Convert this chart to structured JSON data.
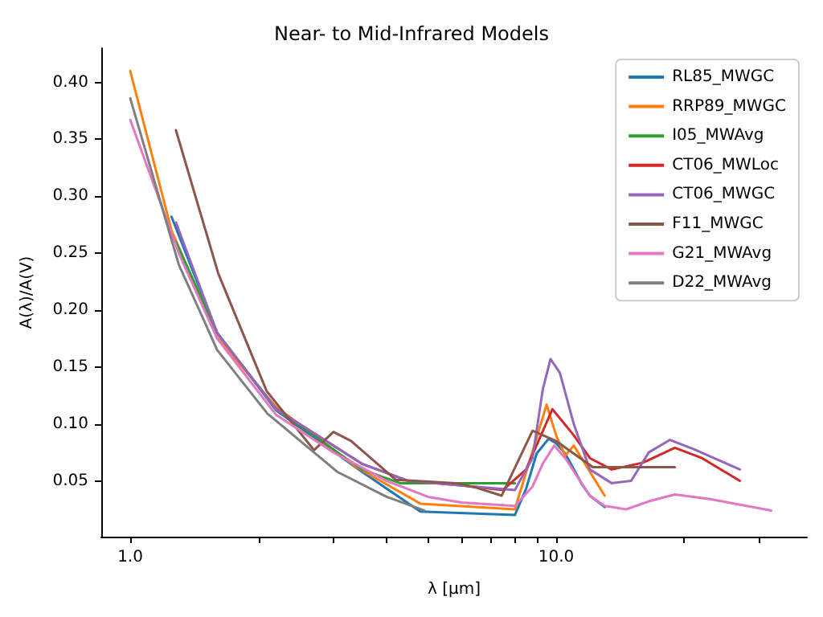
{
  "chart_data": {
    "type": "line",
    "title": "Near- to Mid-Infrared Models",
    "xlabel": "λ [μm]",
    "ylabel": "A(λ)/A(V)",
    "log": "x",
    "grid": false,
    "legend": "top right",
    "marker": "none",
    "line_style": "solid",
    "xlim": [
      0.855,
      38.8
    ],
    "ylim": [
      0.001,
      0.43
    ],
    "xticks": [
      {
        "value": 1,
        "label": "1.0"
      },
      {
        "value": 2,
        "label": null
      },
      {
        "value": 3,
        "label": null
      },
      {
        "value": 4,
        "label": null
      },
      {
        "value": 5,
        "label": null
      },
      {
        "value": 6,
        "label": null
      },
      {
        "value": 7,
        "label": null
      },
      {
        "value": 8,
        "label": null
      },
      {
        "value": 9,
        "label": null
      },
      {
        "value": 10,
        "label": "10.0"
      },
      {
        "value": 20,
        "label": null
      },
      {
        "value": 30,
        "label": null
      }
    ],
    "yticks": [
      {
        "value": 0.05,
        "label": "0.05"
      },
      {
        "value": 0.1,
        "label": "0.10"
      },
      {
        "value": 0.15,
        "label": "0.15"
      },
      {
        "value": 0.2,
        "label": "0.20"
      },
      {
        "value": 0.25,
        "label": "0.25"
      },
      {
        "value": 0.3,
        "label": "0.30"
      },
      {
        "value": 0.35,
        "label": "0.35"
      },
      {
        "value": 0.4,
        "label": "0.40"
      }
    ],
    "series": [
      {
        "name": "RL85_MWGC",
        "color": "#1f77b4",
        "x": [
          1.25,
          1.6,
          2.2,
          3.5,
          4.8,
          8,
          8.5,
          9,
          9.6,
          10,
          10.5,
          11.5,
          12,
          13
        ],
        "values": [
          0.282,
          0.18,
          0.112,
          0.058,
          0.023,
          0.02,
          0.043,
          0.074,
          0.087,
          0.083,
          0.074,
          0.047,
          0.037,
          0.027
        ]
      },
      {
        "name": "RRP89_MWGC",
        "color": "#ff7f0e",
        "x": [
          1,
          1.25,
          1.6,
          2.2,
          3.4,
          4.8,
          8,
          9.5,
          10,
          10.5,
          11,
          13
        ],
        "values": [
          0.41,
          0.27,
          0.176,
          0.115,
          0.062,
          0.03,
          0.025,
          0.117,
          0.09,
          0.072,
          0.081,
          0.037
        ]
      },
      {
        "name": "I05_MWAvg",
        "color": "#2ca02c",
        "x": [
          1.28,
          1.6,
          2.2,
          3.5,
          4.3,
          8
        ],
        "values": [
          0.26,
          0.18,
          0.113,
          0.06,
          0.048,
          0.048
        ]
      },
      {
        "name": "CT06_MWLoc",
        "color": "#d62728",
        "x": [
          2.2,
          3.5,
          4.5,
          6,
          7.5,
          8.5,
          9.8,
          11,
          12,
          13.5,
          16,
          19,
          22,
          27
        ],
        "values": [
          0.113,
          0.065,
          0.05,
          0.046,
          0.042,
          0.06,
          0.113,
          0.09,
          0.07,
          0.06,
          0.066,
          0.079,
          0.07,
          0.05
        ]
      },
      {
        "name": "CT06_MWGC",
        "color": "#9467bd",
        "x": [
          1.28,
          1.6,
          2.2,
          3.5,
          4.5,
          6,
          8,
          8.8,
          9.3,
          9.7,
          10.2,
          11,
          12,
          13.5,
          15,
          16.5,
          18.5,
          21,
          27
        ],
        "values": [
          0.277,
          0.18,
          0.113,
          0.065,
          0.05,
          0.046,
          0.042,
          0.07,
          0.13,
          0.157,
          0.145,
          0.1,
          0.06,
          0.048,
          0.05,
          0.075,
          0.086,
          0.078,
          0.06
        ]
      },
      {
        "name": "F11_MWGC",
        "color": "#8c564b",
        "x": [
          1.28,
          1.61,
          2.09,
          2.7,
          3,
          3.3,
          4.2,
          5.8,
          6.5,
          7.45,
          8.8,
          10,
          12.2,
          19
        ],
        "values": [
          0.358,
          0.232,
          0.129,
          0.077,
          0.093,
          0.085,
          0.051,
          0.048,
          0.044,
          0.037,
          0.094,
          0.085,
          0.062,
          0.062
        ]
      },
      {
        "name": "G21_MWAvg",
        "color": "#e377c2",
        "x": [
          1,
          1.3,
          1.6,
          2.2,
          3,
          4,
          5,
          6,
          8,
          8.8,
          9.3,
          9.9,
          10.5,
          12,
          13,
          14.6,
          16.5,
          19,
          23,
          32
        ],
        "values": [
          0.367,
          0.25,
          0.175,
          0.108,
          0.075,
          0.05,
          0.036,
          0.031,
          0.028,
          0.045,
          0.065,
          0.081,
          0.07,
          0.037,
          0.028,
          0.025,
          0.032,
          0.038,
          0.034,
          0.024
        ]
      },
      {
        "name": "D22_MWAvg",
        "color": "#7f7f7f",
        "x": [
          1,
          1.3,
          1.6,
          2.1,
          3.06,
          4,
          4.9
        ],
        "values": [
          0.386,
          0.24,
          0.165,
          0.109,
          0.058,
          0.036,
          0.024
        ]
      }
    ]
  }
}
